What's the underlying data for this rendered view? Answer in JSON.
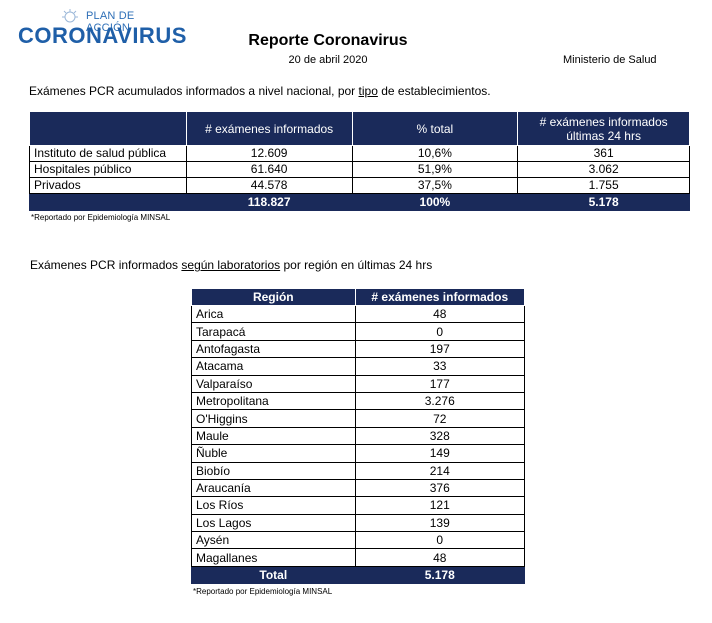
{
  "logo": {
    "sub": "PLAN DE ACCIÓN",
    "main": "CORONAVIRUS"
  },
  "header": {
    "title": "Reporte Coronavirus",
    "date": "20 de abril 2020",
    "ministry": "Ministerio de Salud"
  },
  "section1": {
    "subtitle_pre": "Exámenes PCR acumulados informados a nivel nacional, por ",
    "subtitle_u": "tipo",
    "subtitle_post": " de establecimientos.",
    "headers": [
      "",
      "# exámenes informados",
      "% total",
      "# exámenes informados últimas 24 hrs"
    ],
    "rows": [
      [
        "Instituto de salud pública",
        "12.609",
        "10,6%",
        "361"
      ],
      [
        "Hospitales público",
        "61.640",
        "51,9%",
        "3.062"
      ],
      [
        "Privados",
        "44.578",
        "37,5%",
        "1.755"
      ]
    ],
    "total": [
      "",
      "118.827",
      "100%",
      "5.178"
    ],
    "note": "*Reportado por Epidemiología MINSAL"
  },
  "section2": {
    "subtitle_pre": "Exámenes PCR informados ",
    "subtitle_u": "según laboratorios",
    "subtitle_post": " por región en últimas 24 hrs",
    "headers": [
      "Región",
      "# exámenes informados"
    ],
    "rows": [
      [
        "Arica",
        "48"
      ],
      [
        "Tarapacá",
        "0"
      ],
      [
        "Antofagasta",
        "197"
      ],
      [
        "Atacama",
        "33"
      ],
      [
        "Valparaíso",
        "177"
      ],
      [
        "Metropolitana",
        "3.276"
      ],
      [
        "O'Higgins",
        "72"
      ],
      [
        "Maule",
        "328"
      ],
      [
        "Ñuble",
        "149"
      ],
      [
        "Biobío",
        "214"
      ],
      [
        "Araucanía",
        "376"
      ],
      [
        "Los Ríos",
        "121"
      ],
      [
        "Los Lagos",
        "139"
      ],
      [
        "Aysén",
        "0"
      ],
      [
        "Magallanes",
        "48"
      ]
    ],
    "total": [
      "Total",
      "5.178"
    ],
    "note": "*Reportado por Epidemiología MINSAL"
  },
  "colors": {
    "header_bg": "#1a2a5a",
    "logo_blue": "#1f5fa8"
  }
}
